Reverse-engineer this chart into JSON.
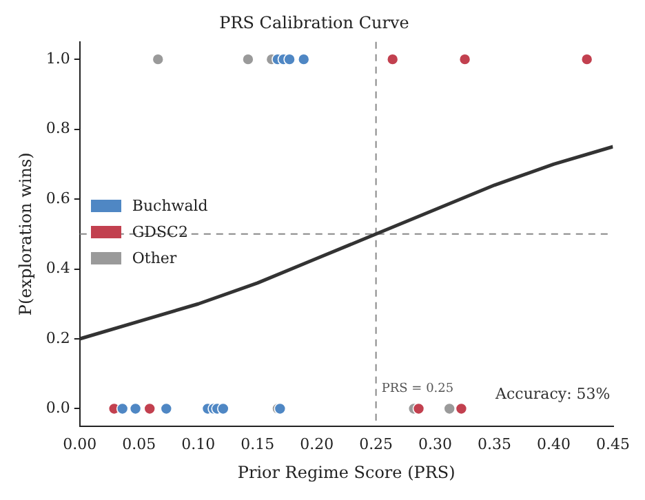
{
  "chart_data": {
    "type": "scatter",
    "title": "PRS Calibration Curve",
    "xlabel": "Prior Regime Score (PRS)",
    "ylabel": "P(exploration wins)",
    "xlim": [
      0,
      0.45
    ],
    "ylim": [
      -0.05,
      1.05
    ],
    "xticks": [
      {
        "value": 0,
        "label": "0.00"
      },
      {
        "value": 0.05,
        "label": "0.05"
      },
      {
        "value": 0.1,
        "label": "0.10"
      },
      {
        "value": 0.15,
        "label": "0.15"
      },
      {
        "value": 0.2,
        "label": "0.20"
      },
      {
        "value": 0.25,
        "label": "0.25"
      },
      {
        "value": 0.3,
        "label": "0.30"
      },
      {
        "value": 0.35,
        "label": "0.35"
      },
      {
        "value": 0.4,
        "label": "0.40"
      },
      {
        "value": 0.45,
        "label": "0.45"
      }
    ],
    "yticks": [
      {
        "value": 0,
        "label": "0.0"
      },
      {
        "value": 0.2,
        "label": "0.2"
      },
      {
        "value": 0.4,
        "label": "0.4"
      },
      {
        "value": 0.6,
        "label": "0.6"
      },
      {
        "value": 0.8,
        "label": "0.8"
      },
      {
        "value": 1,
        "label": "1.0"
      }
    ],
    "grid": false,
    "legend": "left",
    "marker": "circle",
    "series": [
      {
        "type": "line",
        "color": "#333333",
        "marker": "none",
        "x": [
          0,
          0.05,
          0.1,
          0.15,
          0.2,
          0.25,
          0.3,
          0.35,
          0.4,
          0.45
        ],
        "values": [
          0.2,
          0.25,
          0.3,
          0.36,
          0.43,
          0.5,
          0.57,
          0.64,
          0.7,
          0.75
        ]
      },
      {
        "name": "Buchwald",
        "color": "#4f87c4",
        "x": [
          0.167,
          0.172,
          0.177,
          0.189,
          0.036,
          0.047,
          0.073,
          0.108,
          0.113,
          0.116,
          0.121,
          0.169
        ],
        "values": [
          1,
          1,
          1,
          1,
          0,
          0,
          0,
          0,
          0,
          0,
          0,
          0
        ]
      },
      {
        "name": "GDSC2",
        "color": "#c2404f",
        "x": [
          0.264,
          0.325,
          0.428,
          0.029,
          0.059,
          0.286,
          0.322
        ],
        "values": [
          1,
          1,
          1,
          0,
          0,
          0,
          0
        ]
      },
      {
        "name": "Other",
        "color": "#9a9a9a",
        "x": [
          0.066,
          0.142,
          0.162,
          0.167,
          0.282,
          0.312
        ],
        "values": [
          1,
          1,
          1,
          0,
          0,
          0
        ]
      }
    ],
    "ref_lines": [
      {
        "axis": "x",
        "value": 0.25,
        "label": "PRS = 0.25",
        "color": "#888888",
        "line_style": "dashed"
      },
      {
        "axis": "y",
        "value": 0.5,
        "color": "#888888",
        "line_style": "dashed"
      }
    ],
    "annotations": [
      "Accuracy: 53%"
    ]
  }
}
